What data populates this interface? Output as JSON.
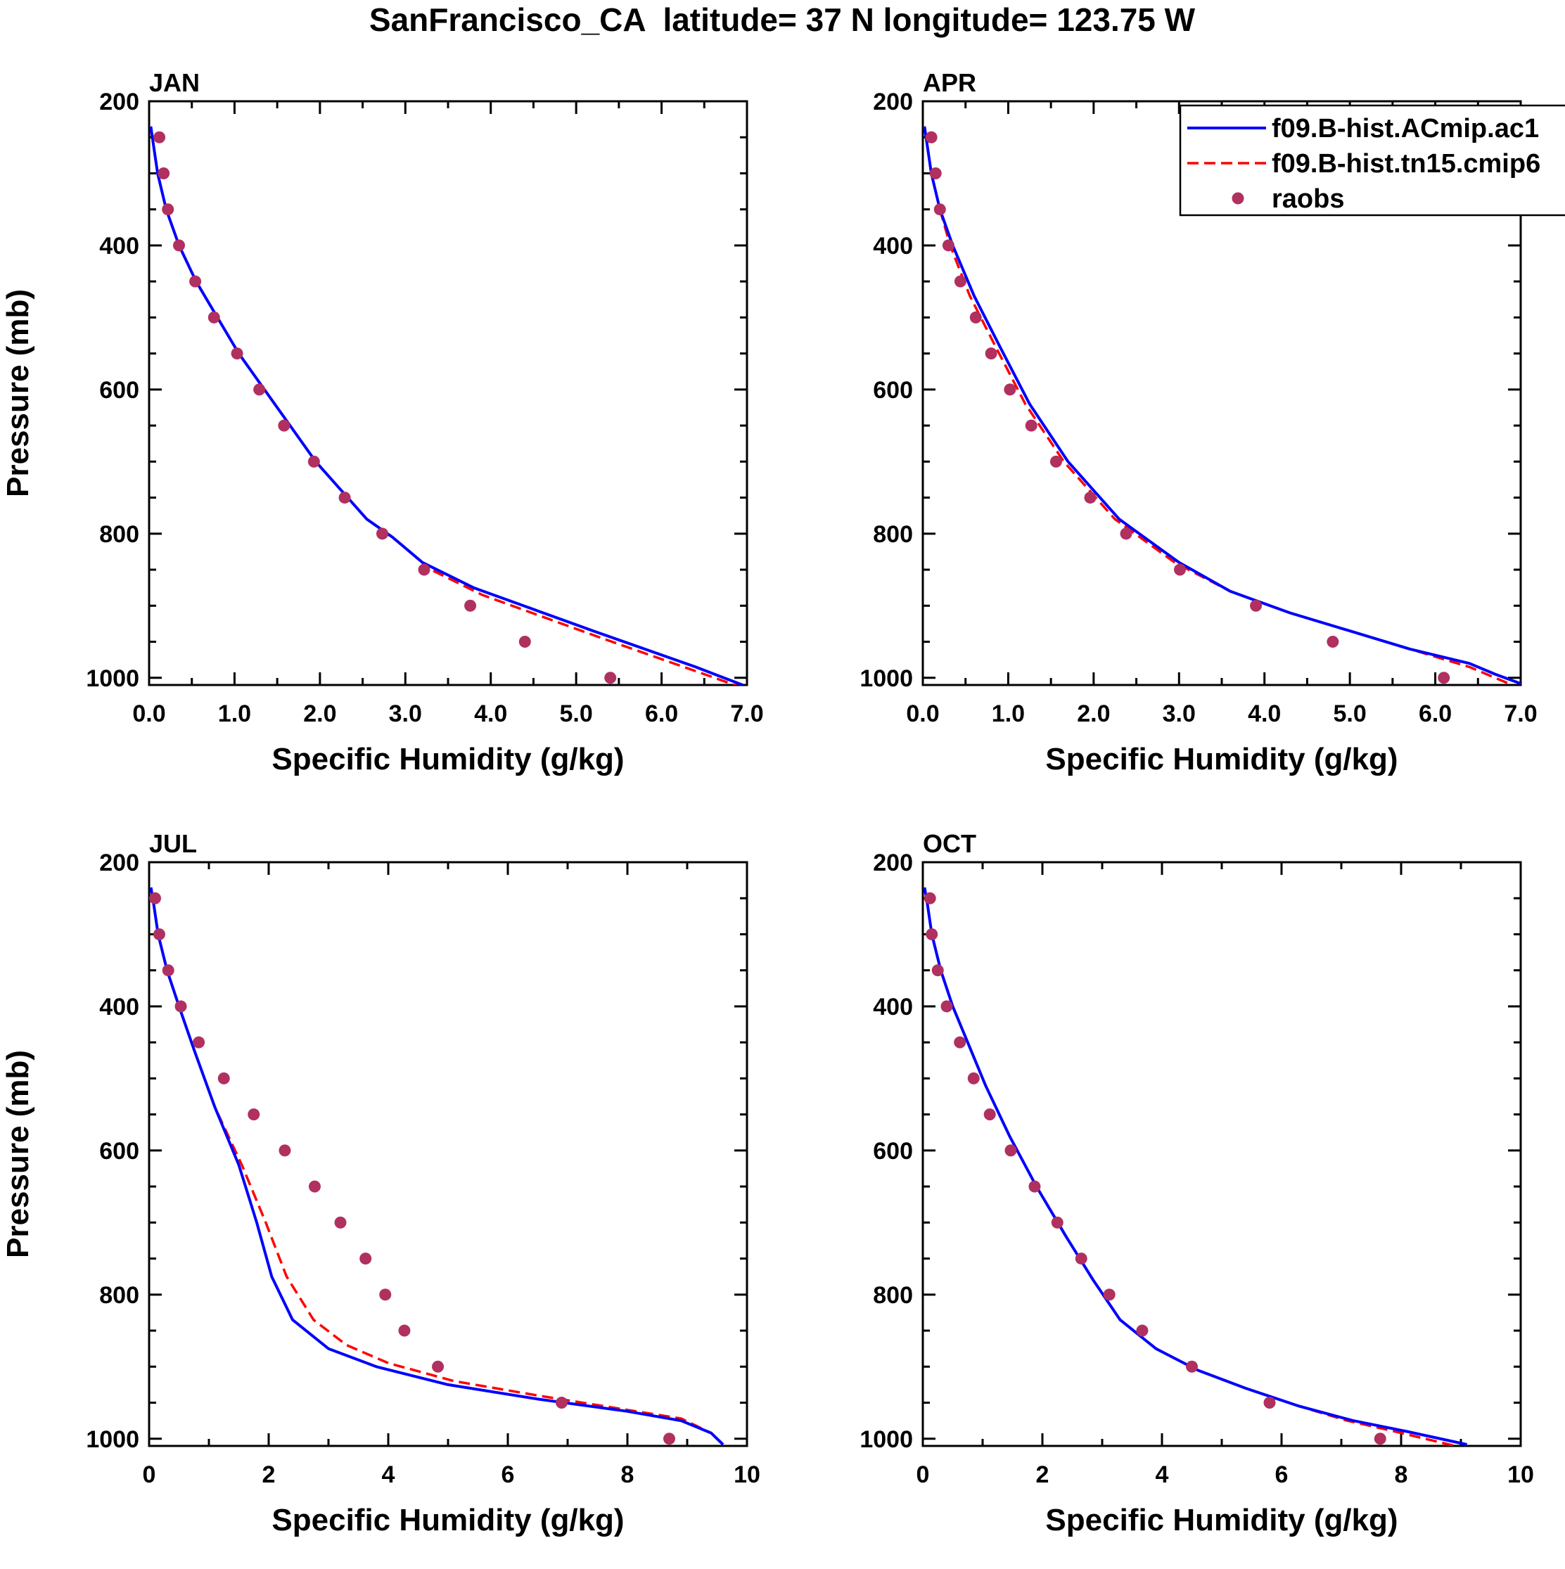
{
  "title": "SanFrancisco_CA  latitude= 37 N longitude= 123.75 W",
  "legend": {
    "location": "top-right of APR panel",
    "entries": [
      {
        "label": "f09.B-hist.ACmip.ac1",
        "style": "solid",
        "color": "#0000ff"
      },
      {
        "label": "f09.B-hist.tn15.cmip6",
        "style": "dashed",
        "color": "#ff0000"
      },
      {
        "label": "raobs",
        "style": "marker",
        "color": "#b03060"
      }
    ]
  },
  "colors": {
    "model1": "#0000ff",
    "model2": "#ff0000",
    "obs": "#b03060"
  },
  "chart_data": [
    {
      "type": "line",
      "panel": "JAN",
      "title": "JAN",
      "xlabel": "Specific Humidity (g/kg)",
      "ylabel": "Pressure (mb)",
      "xlim": [
        0,
        7
      ],
      "ylim": [
        200,
        1000
      ],
      "y_inverted": true,
      "xticks": [
        0,
        1,
        2,
        3,
        4,
        5,
        6,
        7
      ],
      "xtick_labels": [
        "0.0",
        "1.0",
        "2.0",
        "3.0",
        "4.0",
        "5.0",
        "6.0",
        "7.0"
      ],
      "yticks": [
        200,
        400,
        600,
        800,
        1000
      ],
      "ytick_labels": [
        "200",
        "400",
        "600",
        "800",
        "1000"
      ],
      "series": [
        {
          "name": "f09.B-hist.ACmip.ac1",
          "kind": "solid",
          "q": [
            0.02,
            0.05,
            0.1,
            0.2,
            0.35,
            0.55,
            0.8,
            1.05,
            1.35,
            1.65,
            1.95,
            2.25,
            2.55,
            2.85,
            3.2,
            3.8,
            4.5,
            5.2,
            5.8,
            6.4,
            6.95
          ],
          "p": [
            235,
            260,
            300,
            350,
            400,
            450,
            500,
            550,
            600,
            650,
            700,
            740,
            780,
            805,
            840,
            875,
            905,
            935,
            960,
            985,
            1010
          ]
        },
        {
          "name": "f09.B-hist.tn15.cmip6",
          "kind": "dashed",
          "q": [
            0.02,
            0.05,
            0.1,
            0.2,
            0.35,
            0.55,
            0.8,
            1.05,
            1.35,
            1.65,
            1.95,
            2.25,
            2.55,
            2.9,
            3.3,
            3.9,
            4.6,
            5.3,
            5.9,
            6.5,
            6.9
          ],
          "p": [
            235,
            260,
            300,
            350,
            400,
            450,
            500,
            550,
            600,
            650,
            700,
            740,
            780,
            810,
            850,
            885,
            915,
            945,
            970,
            995,
            1012
          ]
        },
        {
          "name": "raobs",
          "kind": "marker",
          "q": [
            0.12,
            0.17,
            0.22,
            0.35,
            0.54,
            0.76,
            1.03,
            1.29,
            1.58,
            1.93,
            2.29,
            2.73,
            3.22,
            3.76,
            4.4,
            5.4
          ],
          "p": [
            250,
            300,
            350,
            400,
            450,
            500,
            550,
            600,
            650,
            700,
            750,
            800,
            850,
            900,
            950,
            1000
          ]
        }
      ]
    },
    {
      "type": "line",
      "panel": "APR",
      "title": "APR",
      "xlabel": "Specific Humidity (g/kg)",
      "ylabel": "",
      "xlim": [
        0,
        7
      ],
      "ylim": [
        200,
        1000
      ],
      "y_inverted": true,
      "xticks": [
        0,
        1,
        2,
        3,
        4,
        5,
        6,
        7
      ],
      "xtick_labels": [
        "0.0",
        "1.0",
        "2.0",
        "3.0",
        "4.0",
        "5.0",
        "6.0",
        "7.0"
      ],
      "yticks": [
        200,
        400,
        600,
        800,
        1000
      ],
      "ytick_labels": [
        "200",
        "400",
        "600",
        "800",
        "1000"
      ],
      "series": [
        {
          "name": "f09.B-hist.ACmip.ac1",
          "kind": "solid",
          "q": [
            0.02,
            0.05,
            0.1,
            0.2,
            0.35,
            0.6,
            0.9,
            1.25,
            1.7,
            2.3,
            3.0,
            3.6,
            4.3,
            5.0,
            5.7,
            6.4,
            6.7,
            7.0
          ],
          "p": [
            235,
            260,
            300,
            350,
            400,
            470,
            540,
            620,
            700,
            780,
            840,
            880,
            910,
            935,
            960,
            980,
            995,
            1008
          ]
        },
        {
          "name": "f09.B-hist.tn15.cmip6",
          "kind": "dashed",
          "q": [
            0.02,
            0.05,
            0.1,
            0.2,
            0.32,
            0.55,
            0.85,
            1.2,
            1.65,
            2.25,
            2.95,
            3.6,
            4.3,
            5.0,
            5.7,
            6.4,
            6.9
          ],
          "p": [
            235,
            260,
            300,
            350,
            400,
            470,
            540,
            620,
            700,
            780,
            840,
            880,
            910,
            935,
            960,
            985,
            1010
          ]
        },
        {
          "name": "raobs",
          "kind": "marker",
          "q": [
            0.1,
            0.15,
            0.2,
            0.3,
            0.44,
            0.62,
            0.8,
            1.02,
            1.27,
            1.56,
            1.96,
            2.38,
            3.01,
            3.9,
            4.8,
            6.1
          ],
          "p": [
            250,
            300,
            350,
            400,
            450,
            500,
            550,
            600,
            650,
            700,
            750,
            800,
            850,
            900,
            950,
            1000
          ]
        }
      ]
    },
    {
      "type": "line",
      "panel": "JUL",
      "title": "JUL",
      "xlabel": "Specific Humidity (g/kg)",
      "ylabel": "Pressure (mb)",
      "xlim": [
        0,
        10
      ],
      "ylim": [
        200,
        1000
      ],
      "y_inverted": true,
      "xticks": [
        0,
        2,
        4,
        6,
        8,
        10
      ],
      "xtick_labels": [
        "0",
        "2",
        "4",
        "6",
        "8",
        "10"
      ],
      "yticks": [
        200,
        400,
        600,
        800,
        1000
      ],
      "ytick_labels": [
        "200",
        "400",
        "600",
        "800",
        "1000"
      ],
      "series": [
        {
          "name": "f09.B-hist.ACmip.ac1",
          "kind": "solid",
          "q": [
            0.03,
            0.08,
            0.15,
            0.3,
            0.5,
            0.75,
            1.1,
            1.5,
            1.8,
            2.05,
            2.4,
            3.0,
            3.8,
            5.0,
            6.5,
            8.0,
            8.9,
            9.4,
            9.6
          ],
          "p": [
            235,
            260,
            300,
            350,
            400,
            460,
            540,
            620,
            700,
            775,
            835,
            875,
            900,
            925,
            945,
            962,
            975,
            992,
            1008
          ]
        },
        {
          "name": "f09.B-hist.tn15.cmip6",
          "kind": "dashed",
          "q": [
            0.03,
            0.08,
            0.15,
            0.3,
            0.5,
            0.75,
            1.1,
            1.55,
            1.95,
            2.3,
            2.75,
            3.3,
            4.0,
            5.1,
            6.5,
            8.0,
            8.9,
            9.4,
            9.6
          ],
          "p": [
            235,
            260,
            300,
            350,
            400,
            460,
            540,
            620,
            700,
            775,
            835,
            870,
            895,
            920,
            940,
            960,
            972,
            992,
            1008
          ]
        },
        {
          "name": "raobs",
          "kind": "marker",
          "q": [
            0.1,
            0.17,
            0.32,
            0.53,
            0.83,
            1.25,
            1.75,
            2.27,
            2.77,
            3.2,
            3.62,
            3.95,
            4.27,
            4.83,
            6.9,
            8.7
          ],
          "p": [
            250,
            300,
            350,
            400,
            450,
            500,
            550,
            600,
            650,
            700,
            750,
            800,
            850,
            900,
            950,
            1000
          ]
        }
      ]
    },
    {
      "type": "line",
      "panel": "OCT",
      "title": "OCT",
      "xlabel": "Specific Humidity (g/kg)",
      "ylabel": "",
      "xlim": [
        0,
        10
      ],
      "ylim": [
        200,
        1000
      ],
      "y_inverted": true,
      "xticks": [
        0,
        2,
        4,
        6,
        8,
        10
      ],
      "xtick_labels": [
        "0",
        "2",
        "4",
        "6",
        "8",
        "10"
      ],
      "yticks": [
        200,
        400,
        600,
        800,
        1000
      ],
      "ytick_labels": [
        "200",
        "400",
        "600",
        "800",
        "1000"
      ],
      "series": [
        {
          "name": "f09.B-hist.ACmip.ac1",
          "kind": "solid",
          "q": [
            0.03,
            0.08,
            0.15,
            0.3,
            0.5,
            0.75,
            1.05,
            1.45,
            1.9,
            2.4,
            2.85,
            3.3,
            3.9,
            4.6,
            5.4,
            6.3,
            7.2,
            8.1,
            9.1
          ],
          "p": [
            235,
            260,
            300,
            350,
            400,
            450,
            510,
            580,
            650,
            720,
            780,
            835,
            875,
            905,
            930,
            955,
            975,
            990,
            1008
          ]
        },
        {
          "name": "f09.B-hist.tn15.cmip6",
          "kind": "dashed",
          "q": [
            0.03,
            0.08,
            0.15,
            0.3,
            0.5,
            0.75,
            1.05,
            1.45,
            1.9,
            2.4,
            2.85,
            3.3,
            3.9,
            4.6,
            5.4,
            6.3,
            7.1,
            7.9,
            8.9
          ],
          "p": [
            235,
            260,
            300,
            350,
            400,
            450,
            510,
            580,
            650,
            720,
            780,
            835,
            875,
            905,
            930,
            955,
            975,
            990,
            1010
          ]
        },
        {
          "name": "raobs",
          "kind": "marker",
          "q": [
            0.12,
            0.15,
            0.25,
            0.4,
            0.62,
            0.85,
            1.12,
            1.47,
            1.87,
            2.25,
            2.65,
            3.12,
            3.67,
            4.5,
            5.8,
            7.65
          ],
          "p": [
            250,
            300,
            350,
            400,
            450,
            500,
            550,
            600,
            650,
            700,
            750,
            800,
            850,
            900,
            950,
            1000
          ]
        }
      ]
    }
  ]
}
